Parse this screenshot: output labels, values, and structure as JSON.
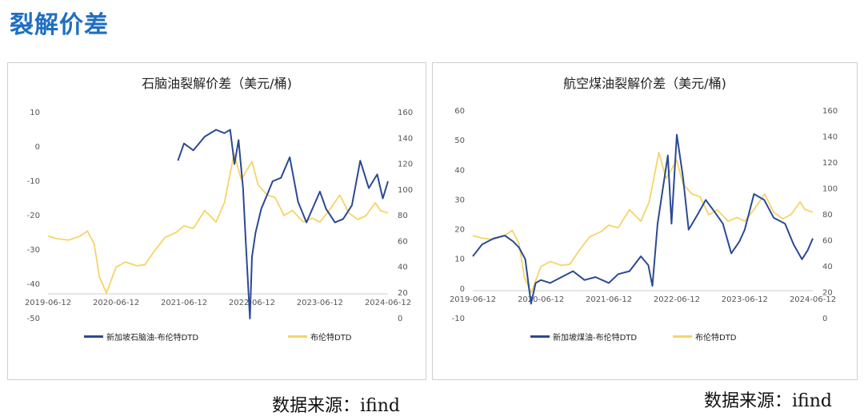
{
  "page": {
    "title": "裂解价差"
  },
  "colors": {
    "spread": "#2b4a93",
    "brent": "#f5d467",
    "axis": "#cccccc"
  },
  "chart_data": [
    {
      "type": "line",
      "title": "石脑油裂解价差（美元/桶)",
      "x_tick_labels": [
        "2019-06-12",
        "2020-06-12",
        "2021-06-12",
        "2022-06-12",
        "2023-06-12",
        "2024-06-12"
      ],
      "xlim": [
        "2019-06-12",
        "2024-06-12"
      ],
      "y_left": {
        "ticks": [
          10,
          0,
          -10,
          -20,
          -30,
          -40,
          -50
        ],
        "lim": [
          -50,
          10
        ]
      },
      "y_right": {
        "ticks": [
          160,
          140,
          120,
          100,
          80,
          60,
          40,
          20,
          0
        ],
        "lim": [
          0,
          160
        ]
      },
      "series": [
        {
          "name": "新加坡石脑油-布伦特DTD",
          "axis": "left",
          "color": "#2b4a93",
          "x": [
            "2021-05-10",
            "2021-06-12",
            "2021-08-01",
            "2021-10-01",
            "2021-12-01",
            "2022-01-15",
            "2022-02-15",
            "2022-03-10",
            "2022-04-01",
            "2022-04-25",
            "2022-05-10",
            "2022-06-01",
            "2022-06-12",
            "2022-07-01",
            "2022-08-01",
            "2022-09-01",
            "2022-10-01",
            "2022-11-15",
            "2023-01-01",
            "2023-02-15",
            "2023-04-01",
            "2023-06-12",
            "2023-07-15",
            "2023-09-01",
            "2023-10-15",
            "2023-12-01",
            "2024-01-15",
            "2024-03-01",
            "2024-04-15",
            "2024-05-15",
            "2024-06-12"
          ],
          "y": [
            -4,
            1,
            -1,
            3,
            5,
            4,
            5,
            -5,
            2,
            -12,
            -28,
            -50,
            -32,
            -25,
            -18,
            -14,
            -10,
            -9,
            -3,
            -16,
            -22,
            -13,
            -18,
            -22,
            -21,
            -17,
            -4,
            -12,
            -8,
            -15,
            -10
          ]
        },
        {
          "name": "布伦特DTD",
          "axis": "right",
          "color": "#f5d467",
          "x": [
            "2019-06-12",
            "2019-08-01",
            "2019-10-01",
            "2019-12-01",
            "2020-01-10",
            "2020-02-15",
            "2020-03-15",
            "2020-04-21",
            "2020-06-12",
            "2020-08-01",
            "2020-10-01",
            "2020-11-15",
            "2021-01-01",
            "2021-03-01",
            "2021-05-01",
            "2021-06-12",
            "2021-08-01",
            "2021-10-01",
            "2021-12-01",
            "2022-01-15",
            "2022-03-08",
            "2022-04-15",
            "2022-06-12",
            "2022-07-15",
            "2022-09-01",
            "2022-10-15",
            "2022-12-01",
            "2023-01-15",
            "2023-03-15",
            "2023-05-01",
            "2023-06-12",
            "2023-08-01",
            "2023-09-27",
            "2023-11-15",
            "2024-01-01",
            "2024-02-15",
            "2024-04-05",
            "2024-05-01",
            "2024-06-12"
          ],
          "y": [
            64,
            62,
            61,
            64,
            68,
            58,
            32,
            20,
            40,
            44,
            41,
            42,
            52,
            63,
            67,
            72,
            70,
            84,
            75,
            90,
            128,
            108,
            122,
            104,
            96,
            94,
            80,
            84,
            75,
            78,
            75,
            84,
            96,
            82,
            77,
            80,
            90,
            84,
            82
          ]
        }
      ]
    },
    {
      "type": "line",
      "title": "航空煤油裂解价差（美元/桶)",
      "x_tick_labels": [
        "2019-06-12",
        "2020-06-12",
        "2021-06-12",
        "2022-06-12",
        "2023-06-12",
        "2024-06-12"
      ],
      "xlim": [
        "2019-06-12",
        "2024-06-12"
      ],
      "y_left": {
        "ticks": [
          60,
          50,
          40,
          30,
          20,
          10,
          0,
          -10
        ],
        "lim": [
          -10,
          60
        ]
      },
      "y_right": {
        "ticks": [
          160,
          140,
          120,
          100,
          80,
          60,
          40,
          20,
          0
        ],
        "lim": [
          0,
          160
        ]
      },
      "series": [
        {
          "name": "新加坡煤油-布伦特DTD",
          "axis": "left",
          "color": "#2b4a93",
          "x": [
            "2019-06-12",
            "2019-08-01",
            "2019-10-01",
            "2019-12-01",
            "2020-01-15",
            "2020-02-15",
            "2020-03-20",
            "2020-04-20",
            "2020-05-15",
            "2020-06-12",
            "2020-08-01",
            "2020-10-01",
            "2020-12-01",
            "2021-02-01",
            "2021-04-01",
            "2021-06-12",
            "2021-08-01",
            "2021-10-01",
            "2021-12-01",
            "2022-01-10",
            "2022-02-01",
            "2022-03-01",
            "2022-04-01",
            "2022-04-25",
            "2022-05-15",
            "2022-06-12",
            "2022-07-15",
            "2022-08-15",
            "2022-10-01",
            "2022-11-15",
            "2023-01-01",
            "2023-02-15",
            "2023-04-01",
            "2023-05-15",
            "2023-06-12",
            "2023-08-01",
            "2023-09-25",
            "2023-11-15",
            "2024-01-15",
            "2024-03-01",
            "2024-04-15",
            "2024-05-15",
            "2024-06-12"
          ],
          "y": [
            11,
            15,
            17,
            18,
            16,
            14,
            10,
            -5,
            2,
            3,
            2,
            4,
            6,
            3,
            4,
            2,
            5,
            6,
            11,
            8,
            1,
            22,
            35,
            45,
            22,
            52,
            38,
            20,
            25,
            30,
            26,
            22,
            12,
            16,
            20,
            32,
            30,
            24,
            22,
            15,
            10,
            13,
            17
          ]
        },
        {
          "name": "布伦特DTD",
          "axis": "right",
          "color": "#f5d467",
          "x": [
            "2019-06-12",
            "2019-08-01",
            "2019-10-01",
            "2019-12-01",
            "2020-01-10",
            "2020-02-15",
            "2020-03-15",
            "2020-04-21",
            "2020-06-12",
            "2020-08-01",
            "2020-10-01",
            "2020-11-15",
            "2021-01-01",
            "2021-03-01",
            "2021-05-01",
            "2021-06-12",
            "2021-08-01",
            "2021-10-01",
            "2021-12-01",
            "2022-01-15",
            "2022-03-08",
            "2022-04-15",
            "2022-06-12",
            "2022-07-15",
            "2022-09-01",
            "2022-10-15",
            "2022-12-01",
            "2023-01-15",
            "2023-03-15",
            "2023-05-01",
            "2023-06-12",
            "2023-08-01",
            "2023-09-27",
            "2023-11-15",
            "2024-01-01",
            "2024-02-15",
            "2024-04-05",
            "2024-05-01",
            "2024-06-12"
          ],
          "y": [
            64,
            62,
            61,
            64,
            68,
            58,
            32,
            20,
            40,
            44,
            41,
            42,
            52,
            63,
            67,
            72,
            70,
            84,
            75,
            90,
            128,
            108,
            122,
            104,
            96,
            94,
            80,
            84,
            75,
            78,
            75,
            84,
            96,
            82,
            77,
            80,
            90,
            84,
            82
          ]
        }
      ]
    }
  ],
  "legends": [
    {
      "spread_label": "新加坡石脑油-布伦特DTD",
      "brent_label": "布伦特DTD"
    },
    {
      "spread_label": "新加坡煤油-布伦特DTD",
      "brent_label": "布伦特DTD"
    }
  ],
  "sources": [
    "数据来源：ifind",
    "数据来源：ifind"
  ]
}
